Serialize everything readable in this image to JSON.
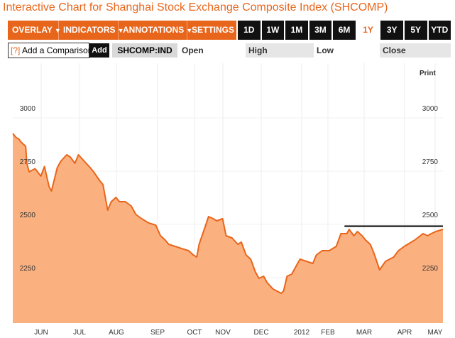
{
  "title": "Interactive Chart for Shanghai Stock Exchange Composite Index (SHCOMP)",
  "toolbar": {
    "menus": [
      {
        "label": "OVERLAY"
      },
      {
        "label": "INDICATORS"
      },
      {
        "label": "ANNOTATIONS"
      },
      {
        "label": "SETTINGS"
      }
    ],
    "ranges": [
      "1D",
      "1W",
      "1M",
      "3M",
      "6M",
      "1Y",
      "3Y",
      "5Y",
      "YTD"
    ],
    "active_range": "1Y",
    "caret": "▼"
  },
  "subbar": {
    "help": "[?]",
    "compare_label": "Add a Comparison",
    "add_label": "Add",
    "symbol": "SHCOMP:IND",
    "open_label": "Open",
    "high_label": "High",
    "low_label": "Low",
    "close_label": "Close"
  },
  "print_label": "Print",
  "colors": {
    "accent": "#e8661c",
    "area_fill": "#fbb07f",
    "line": "#e8661c",
    "ref_line": "#000000"
  },
  "chart_data": {
    "type": "area",
    "ylim": [
      2110,
      3100
    ],
    "yticks": [
      2250,
      2500,
      2750,
      3000
    ],
    "xticks": [
      "JUN",
      "JUL",
      "AUG",
      "SEP",
      "OCT",
      "NOV",
      "DEC",
      "2012",
      "FEB",
      "MAR",
      "APR",
      "MAY"
    ],
    "x_range": [
      "2011-05-20",
      "2012-05-21"
    ],
    "series": [
      {
        "values": [
          [
            "2011-05-20",
            2900
          ],
          [
            "2011-05-23",
            2880
          ],
          [
            "2011-05-25",
            2875
          ],
          [
            "2011-05-27",
            2860
          ],
          [
            "2011-05-31",
            2840
          ],
          [
            "2011-06-01",
            2760
          ],
          [
            "2011-06-03",
            2720
          ],
          [
            "2011-06-08",
            2735
          ],
          [
            "2011-06-13",
            2700
          ],
          [
            "2011-06-16",
            2745
          ],
          [
            "2011-06-20",
            2650
          ],
          [
            "2011-06-22",
            2630
          ],
          [
            "2011-06-27",
            2740
          ],
          [
            "2011-06-30",
            2770
          ],
          [
            "2011-07-05",
            2800
          ],
          [
            "2011-07-08",
            2790
          ],
          [
            "2011-07-12",
            2760
          ],
          [
            "2011-07-15",
            2800
          ],
          [
            "2011-07-20",
            2770
          ],
          [
            "2011-07-25",
            2740
          ],
          [
            "2011-07-28",
            2720
          ],
          [
            "2011-08-02",
            2680
          ],
          [
            "2011-08-05",
            2660
          ],
          [
            "2011-08-09",
            2540
          ],
          [
            "2011-08-12",
            2580
          ],
          [
            "2011-08-16",
            2600
          ],
          [
            "2011-08-19",
            2580
          ],
          [
            "2011-08-24",
            2580
          ],
          [
            "2011-08-29",
            2560
          ],
          [
            "2011-09-02",
            2520
          ],
          [
            "2011-09-07",
            2500
          ],
          [
            "2011-09-13",
            2480
          ],
          [
            "2011-09-19",
            2470
          ],
          [
            "2011-09-23",
            2420
          ],
          [
            "2011-09-27",
            2400
          ],
          [
            "2011-09-30",
            2380
          ],
          [
            "2011-10-11",
            2360
          ],
          [
            "2011-10-17",
            2350
          ],
          [
            "2011-10-21",
            2330
          ],
          [
            "2011-10-24",
            2320
          ],
          [
            "2011-10-26",
            2380
          ],
          [
            "2011-10-31",
            2460
          ],
          [
            "2011-11-03",
            2510
          ],
          [
            "2011-11-07",
            2500
          ],
          [
            "2011-11-10",
            2490
          ],
          [
            "2011-11-15",
            2500
          ],
          [
            "2011-11-18",
            2420
          ],
          [
            "2011-11-23",
            2410
          ],
          [
            "2011-11-28",
            2380
          ],
          [
            "2011-12-01",
            2390
          ],
          [
            "2011-12-05",
            2330
          ],
          [
            "2011-12-09",
            2310
          ],
          [
            "2011-12-13",
            2250
          ],
          [
            "2011-12-16",
            2220
          ],
          [
            "2011-12-20",
            2230
          ],
          [
            "2011-12-23",
            2200
          ],
          [
            "2011-12-28",
            2170
          ],
          [
            "2012-01-04",
            2150
          ],
          [
            "2012-01-06",
            2160
          ],
          [
            "2012-01-09",
            2230
          ],
          [
            "2012-01-13",
            2240
          ],
          [
            "2012-01-17",
            2280
          ],
          [
            "2012-01-20",
            2310
          ],
          [
            "2012-01-31",
            2290
          ],
          [
            "2012-02-03",
            2330
          ],
          [
            "2012-02-08",
            2350
          ],
          [
            "2012-02-14",
            2350
          ],
          [
            "2012-02-20",
            2370
          ],
          [
            "2012-02-24",
            2430
          ],
          [
            "2012-02-29",
            2430
          ],
          [
            "2012-03-02",
            2450
          ],
          [
            "2012-03-06",
            2420
          ],
          [
            "2012-03-09",
            2440
          ],
          [
            "2012-03-13",
            2420
          ],
          [
            "2012-03-16",
            2400
          ],
          [
            "2012-03-20",
            2380
          ],
          [
            "2012-03-23",
            2340
          ],
          [
            "2012-03-28",
            2260
          ],
          [
            "2012-04-02",
            2300
          ],
          [
            "2012-04-09",
            2320
          ],
          [
            "2012-04-13",
            2350
          ],
          [
            "2012-04-18",
            2370
          ],
          [
            "2012-04-24",
            2390
          ],
          [
            "2012-04-27",
            2400
          ],
          [
            "2012-05-04",
            2430
          ],
          [
            "2012-05-08",
            2420
          ],
          [
            "2012-05-11",
            2430
          ],
          [
            "2012-05-15",
            2440
          ],
          [
            "2012-05-18",
            2445
          ],
          [
            "2012-05-21",
            2450
          ]
        ]
      }
    ],
    "ref_line": {
      "value": 2465,
      "from": "2012-02-27",
      "to": "2012-05-21"
    }
  }
}
